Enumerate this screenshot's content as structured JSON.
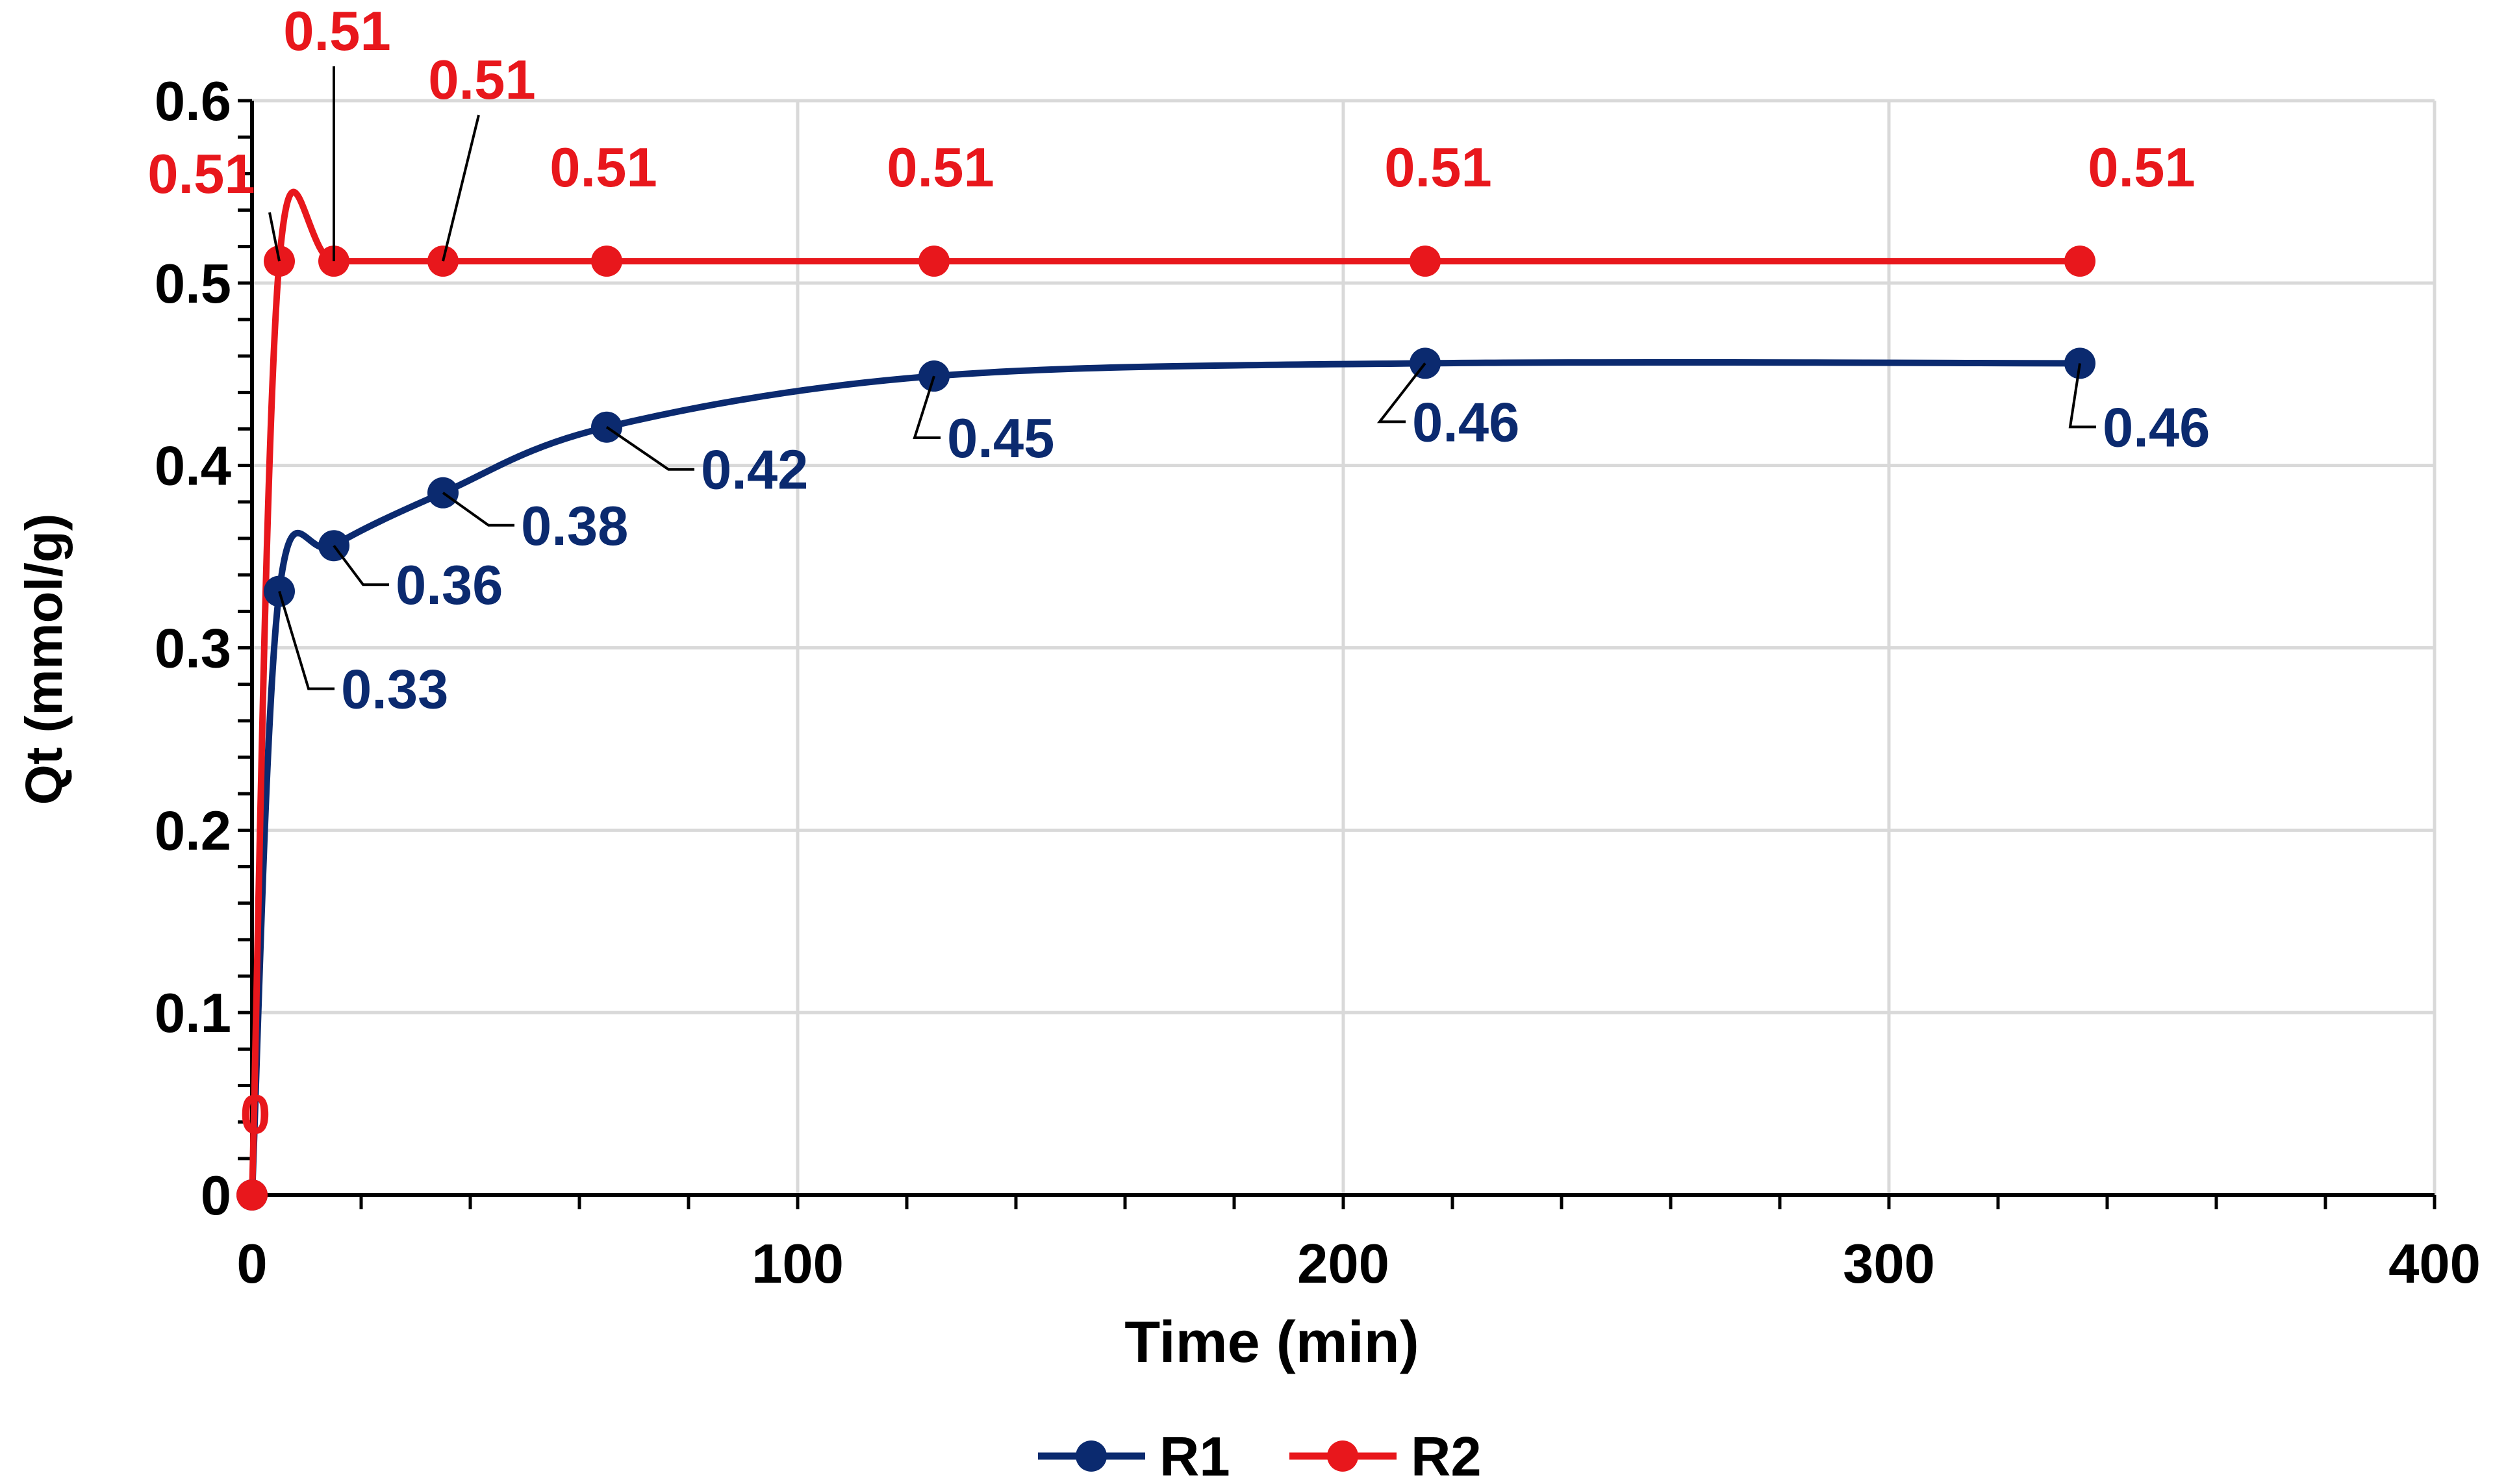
{
  "colors": {
    "r1": "#0b2a6f",
    "r2": "#e8171c",
    "grid": "#d9d9d9",
    "axis": "#000000",
    "text": "#000000"
  },
  "chart_data": {
    "type": "line",
    "title": "",
    "xlabel": "Time (min)",
    "ylabel": "Qt (mmol/g)",
    "xlim": [
      0,
      400
    ],
    "ylim": [
      0,
      0.6
    ],
    "xticks": [
      "0",
      "100",
      "200",
      "300",
      "400"
    ],
    "yticks": [
      "0",
      "0.1",
      "0.2",
      "0.3",
      "0.4",
      "0.5",
      "0.6"
    ],
    "grid": true,
    "legend_position": "bottom-center",
    "series": [
      {
        "name": "R1",
        "color": "#0b2a6f",
        "x": [
          0,
          5,
          15,
          35,
          65,
          125,
          215,
          335
        ],
        "y": [
          0,
          0.331,
          0.356,
          0.385,
          0.421,
          0.449,
          0.456,
          0.456
        ],
        "labels": [
          "0",
          "0.33",
          "0.36",
          "0.38",
          "0.42",
          "0.45",
          "0.46",
          "0.46"
        ]
      },
      {
        "name": "R2",
        "color": "#e8171c",
        "x": [
          0,
          5,
          15,
          35,
          65,
          125,
          215,
          335
        ],
        "y": [
          0,
          0.512,
          0.512,
          0.512,
          0.512,
          0.512,
          0.512,
          0.512
        ],
        "labels": [
          "0",
          "0.51",
          "0.51",
          "0.51",
          "0.51",
          "0.51",
          "0.51",
          "0.51"
        ]
      }
    ]
  }
}
